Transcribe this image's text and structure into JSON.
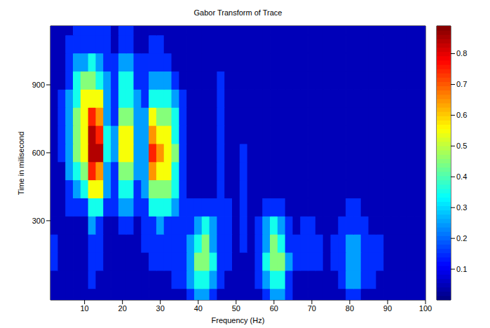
{
  "chart_data": {
    "type": "contour",
    "title": "Gabor Transform of Trace",
    "x_label": "Frequency (Hz)",
    "y_label": "Time in milisecond",
    "xlim": [
      1,
      100
    ],
    "xticks": [
      10,
      20,
      30,
      40,
      50,
      60,
      70,
      80,
      90,
      100
    ],
    "ylim": [
      -50,
      1160
    ],
    "yticks": [
      300,
      600,
      900
    ],
    "x": [
      2,
      4,
      6,
      8,
      10,
      12,
      14,
      16,
      18,
      20,
      22,
      24,
      26,
      28,
      30,
      32,
      34,
      36,
      38,
      40,
      42,
      44,
      46,
      48,
      50,
      52,
      54,
      56,
      58,
      60,
      62,
      64,
      66,
      68,
      70,
      72,
      74,
      76,
      78,
      80,
      82,
      84,
      86,
      88,
      90,
      92,
      94,
      96,
      98,
      100
    ],
    "y": [
      -40,
      40,
      120,
      200,
      280,
      360,
      440,
      520,
      600,
      680,
      760,
      840,
      920,
      1000,
      1080,
      1160
    ],
    "z": [
      [
        0.04,
        0.04,
        0.04,
        0.04,
        0.04,
        0.04,
        0.04,
        0.04,
        0.04,
        0.04,
        0.04,
        0.04,
        0.04,
        0.04,
        0.04,
        0.04,
        0.06,
        0.04,
        0.12,
        0.2,
        0.22,
        0.14,
        0.08,
        0.04,
        0.04,
        0.04,
        0.04,
        0.08,
        0.14,
        0.2,
        0.2,
        0.1,
        0.04,
        0.04,
        0.04,
        0.04,
        0.04,
        0.04,
        0.08,
        0.12,
        0.12,
        0.08,
        0.04,
        0.04,
        0.04,
        0.04,
        0.04,
        0.04,
        0.04,
        0.04
      ],
      [
        0.08,
        0.04,
        0.04,
        0.04,
        0.04,
        0.1,
        0.08,
        0.04,
        0.04,
        0.04,
        0.04,
        0.04,
        0.04,
        0.04,
        0.08,
        0.04,
        0.1,
        0.12,
        0.2,
        0.34,
        0.36,
        0.22,
        0.12,
        0.08,
        0.04,
        0.04,
        0.04,
        0.14,
        0.24,
        0.35,
        0.33,
        0.16,
        0.08,
        0.08,
        0.08,
        0.04,
        0.04,
        0.08,
        0.12,
        0.2,
        0.2,
        0.12,
        0.1,
        0.08,
        0.04,
        0.04,
        0.04,
        0.04,
        0.04,
        0.04
      ],
      [
        0.1,
        0.04,
        0.04,
        0.04,
        0.04,
        0.12,
        0.1,
        0.04,
        0.04,
        0.04,
        0.04,
        0.04,
        0.08,
        0.1,
        0.12,
        0.1,
        0.12,
        0.15,
        0.25,
        0.43,
        0.46,
        0.3,
        0.16,
        0.1,
        0.04,
        0.08,
        0.04,
        0.18,
        0.3,
        0.45,
        0.42,
        0.2,
        0.1,
        0.12,
        0.12,
        0.1,
        0.08,
        0.1,
        0.16,
        0.28,
        0.27,
        0.15,
        0.12,
        0.1,
        0.06,
        0.04,
        0.04,
        0.04,
        0.04,
        0.04
      ],
      [
        0.1,
        0.04,
        0.04,
        0.04,
        0.04,
        0.14,
        0.12,
        0.04,
        0.04,
        0.04,
        0.04,
        0.04,
        0.1,
        0.12,
        0.14,
        0.12,
        0.12,
        0.14,
        0.22,
        0.38,
        0.42,
        0.28,
        0.16,
        0.1,
        0.04,
        0.1,
        0.04,
        0.16,
        0.28,
        0.4,
        0.38,
        0.18,
        0.1,
        0.12,
        0.12,
        0.1,
        0.08,
        0.1,
        0.15,
        0.25,
        0.24,
        0.14,
        0.1,
        0.1,
        0.06,
        0.04,
        0.04,
        0.04,
        0.04,
        0.04
      ],
      [
        0.08,
        0.04,
        0.06,
        0.08,
        0.08,
        0.2,
        0.18,
        0.08,
        0.06,
        0.12,
        0.12,
        0.08,
        0.12,
        0.18,
        0.2,
        0.18,
        0.15,
        0.12,
        0.16,
        0.28,
        0.3,
        0.2,
        0.14,
        0.1,
        0.06,
        0.12,
        0.04,
        0.12,
        0.2,
        0.3,
        0.28,
        0.14,
        0.08,
        0.1,
        0.1,
        0.08,
        0.06,
        0.08,
        0.12,
        0.18,
        0.16,
        0.1,
        0.06,
        0.06,
        0.04,
        0.04,
        0.04,
        0.04,
        0.04,
        0.04
      ],
      [
        0.04,
        0.04,
        0.1,
        0.16,
        0.18,
        0.35,
        0.32,
        0.14,
        0.1,
        0.2,
        0.2,
        0.12,
        0.16,
        0.3,
        0.32,
        0.3,
        0.22,
        0.12,
        0.1,
        0.14,
        0.14,
        0.12,
        0.14,
        0.1,
        0.06,
        0.12,
        0.04,
        0.08,
        0.12,
        0.16,
        0.14,
        0.08,
        0.04,
        0.06,
        0.04,
        0.04,
        0.04,
        0.04,
        0.06,
        0.1,
        0.1,
        0.06,
        0.04,
        0.04,
        0.04,
        0.04,
        0.04,
        0.04,
        0.04,
        0.04
      ],
      [
        0.04,
        0.06,
        0.15,
        0.28,
        0.32,
        0.55,
        0.5,
        0.2,
        0.13,
        0.32,
        0.32,
        0.17,
        0.2,
        0.45,
        0.45,
        0.42,
        0.3,
        0.12,
        0.04,
        0.06,
        0.04,
        0.08,
        0.14,
        0.08,
        0.04,
        0.12,
        0.04,
        0.04,
        0.04,
        0.04,
        0.04,
        0.04,
        0.04,
        0.04,
        0.04,
        0.04,
        0.04,
        0.04,
        0.04,
        0.04,
        0.04,
        0.04,
        0.04,
        0.04,
        0.04,
        0.04,
        0.04,
        0.04,
        0.04,
        0.04
      ],
      [
        0.04,
        0.08,
        0.2,
        0.38,
        0.45,
        0.75,
        0.68,
        0.26,
        0.17,
        0.45,
        0.45,
        0.22,
        0.24,
        0.62,
        0.55,
        0.5,
        0.38,
        0.14,
        0.04,
        0.04,
        0.04,
        0.04,
        0.14,
        0.04,
        0.04,
        0.12,
        0.04,
        0.04,
        0.04,
        0.04,
        0.04,
        0.04,
        0.04,
        0.04,
        0.04,
        0.04,
        0.04,
        0.04,
        0.04,
        0.04,
        0.04,
        0.04,
        0.04,
        0.04,
        0.04,
        0.04,
        0.04,
        0.04,
        0.04,
        0.04
      ],
      [
        0.04,
        0.1,
        0.24,
        0.45,
        0.55,
        0.87,
        0.8,
        0.3,
        0.2,
        0.56,
        0.55,
        0.25,
        0.26,
        0.76,
        0.6,
        0.55,
        0.4,
        0.15,
        0.04,
        0.04,
        0.04,
        0.04,
        0.15,
        0.04,
        0.06,
        0.11,
        0.04,
        0.04,
        0.04,
        0.04,
        0.04,
        0.04,
        0.04,
        0.04,
        0.04,
        0.04,
        0.04,
        0.04,
        0.04,
        0.04,
        0.04,
        0.04,
        0.04,
        0.04,
        0.04,
        0.04,
        0.04,
        0.04,
        0.04,
        0.04
      ],
      [
        0.04,
        0.1,
        0.25,
        0.48,
        0.58,
        0.82,
        0.75,
        0.3,
        0.2,
        0.52,
        0.5,
        0.24,
        0.24,
        0.65,
        0.55,
        0.5,
        0.35,
        0.14,
        0.04,
        0.04,
        0.04,
        0.04,
        0.14,
        0.06,
        0.04,
        0.04,
        0.04,
        0.04,
        0.04,
        0.04,
        0.04,
        0.04,
        0.04,
        0.04,
        0.04,
        0.04,
        0.04,
        0.04,
        0.04,
        0.04,
        0.04,
        0.04,
        0.04,
        0.04,
        0.04,
        0.04,
        0.04,
        0.04,
        0.04,
        0.04
      ],
      [
        0.04,
        0.1,
        0.24,
        0.45,
        0.56,
        0.7,
        0.62,
        0.28,
        0.18,
        0.45,
        0.45,
        0.22,
        0.2,
        0.5,
        0.45,
        0.4,
        0.3,
        0.12,
        0.04,
        0.04,
        0.04,
        0.04,
        0.13,
        0.06,
        0.04,
        0.04,
        0.04,
        0.04,
        0.04,
        0.04,
        0.04,
        0.04,
        0.04,
        0.04,
        0.04,
        0.04,
        0.04,
        0.04,
        0.04,
        0.04,
        0.04,
        0.04,
        0.04,
        0.04,
        0.04,
        0.04,
        0.04,
        0.04,
        0.04,
        0.04
      ],
      [
        0.04,
        0.1,
        0.22,
        0.38,
        0.5,
        0.58,
        0.5,
        0.25,
        0.15,
        0.38,
        0.38,
        0.2,
        0.18,
        0.35,
        0.32,
        0.3,
        0.22,
        0.1,
        0.05,
        0.04,
        0.04,
        0.04,
        0.12,
        0.04,
        0.04,
        0.04,
        0.04,
        0.04,
        0.04,
        0.04,
        0.04,
        0.04,
        0.04,
        0.04,
        0.04,
        0.04,
        0.04,
        0.04,
        0.04,
        0.04,
        0.04,
        0.04,
        0.04,
        0.04,
        0.04,
        0.04,
        0.04,
        0.04,
        0.04,
        0.04
      ],
      [
        0.04,
        0.08,
        0.18,
        0.32,
        0.4,
        0.45,
        0.38,
        0.2,
        0.12,
        0.3,
        0.3,
        0.16,
        0.14,
        0.25,
        0.22,
        0.2,
        0.15,
        0.08,
        0.04,
        0.04,
        0.04,
        0.04,
        0.11,
        0.06,
        0.04,
        0.04,
        0.04,
        0.04,
        0.04,
        0.04,
        0.04,
        0.04,
        0.04,
        0.04,
        0.04,
        0.04,
        0.04,
        0.04,
        0.04,
        0.04,
        0.04,
        0.04,
        0.04,
        0.04,
        0.04,
        0.04,
        0.04,
        0.04,
        0.04,
        0.04
      ],
      [
        0.04,
        0.04,
        0.14,
        0.22,
        0.28,
        0.3,
        0.24,
        0.15,
        0.1,
        0.2,
        0.2,
        0.12,
        0.1,
        0.15,
        0.14,
        0.12,
        0.08,
        0.04,
        0.04,
        0.04,
        0.04,
        0.04,
        0.06,
        0.04,
        0.04,
        0.04,
        0.04,
        0.04,
        0.04,
        0.04,
        0.04,
        0.04,
        0.04,
        0.04,
        0.04,
        0.04,
        0.04,
        0.04,
        0.04,
        0.04,
        0.04,
        0.04,
        0.04,
        0.04,
        0.04,
        0.04,
        0.04,
        0.04,
        0.04,
        0.04
      ],
      [
        0.04,
        0.04,
        0.11,
        0.15,
        0.17,
        0.18,
        0.15,
        0.12,
        0.08,
        0.13,
        0.13,
        0.08,
        0.06,
        0.1,
        0.1,
        0.06,
        0.04,
        0.04,
        0.04,
        0.04,
        0.04,
        0.04,
        0.04,
        0.04,
        0.04,
        0.04,
        0.04,
        0.04,
        0.04,
        0.04,
        0.04,
        0.04,
        0.04,
        0.04,
        0.04,
        0.04,
        0.04,
        0.04,
        0.04,
        0.04,
        0.04,
        0.04,
        0.04,
        0.04,
        0.04,
        0.04,
        0.04,
        0.04,
        0.04,
        0.04
      ],
      [
        0.04,
        0.04,
        0.04,
        0.12,
        0.12,
        0.12,
        0.12,
        0.12,
        0.04,
        0.11,
        0.11,
        0.04,
        0.04,
        0.04,
        0.04,
        0.04,
        0.04,
        0.04,
        0.04,
        0.04,
        0.04,
        0.04,
        0.04,
        0.04,
        0.04,
        0.04,
        0.04,
        0.04,
        0.04,
        0.04,
        0.04,
        0.04,
        0.04,
        0.04,
        0.04,
        0.04,
        0.04,
        0.04,
        0.04,
        0.04,
        0.04,
        0.04,
        0.04,
        0.04,
        0.04,
        0.04,
        0.04,
        0.04,
        0.04,
        0.04
      ]
    ],
    "levels": [
      0.1,
      0.2,
      0.3,
      0.4,
      0.5,
      0.6,
      0.7,
      0.8
    ],
    "colorbar": {
      "range": [
        0,
        0.89
      ],
      "ticks": [
        0.1,
        0.2,
        0.3,
        0.4,
        0.5,
        0.6,
        0.7,
        0.8
      ]
    }
  }
}
